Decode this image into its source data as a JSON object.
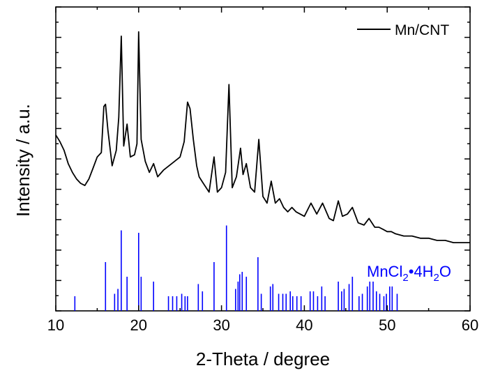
{
  "chart_data": {
    "type": "line",
    "title": "",
    "xlabel": "2-Theta / degree",
    "ylabel": "Intensity / a.u.",
    "xlim": [
      10,
      60
    ],
    "x_ticks": [
      10,
      20,
      30,
      40,
      50,
      60
    ],
    "y_ticks_labeled": false,
    "grid": false,
    "legend": {
      "placement": "top-right",
      "entries": [
        "Mn/CNT"
      ]
    },
    "series": [
      {
        "name": "Mn/CNT",
        "color": "#000000",
        "x": [
          10.0,
          10.5,
          11.0,
          11.5,
          12.0,
          12.5,
          13.0,
          13.5,
          14.0,
          14.5,
          15.0,
          15.5,
          15.8,
          16.0,
          16.3,
          16.8,
          17.3,
          17.6,
          17.9,
          18.2,
          18.6,
          19.0,
          19.5,
          19.8,
          20.0,
          20.3,
          20.8,
          21.3,
          21.8,
          22.3,
          23.0,
          24.0,
          25.0,
          25.5,
          25.9,
          26.2,
          26.6,
          27.0,
          27.3,
          27.8,
          28.5,
          29.1,
          29.5,
          30.0,
          30.5,
          30.9,
          31.3,
          31.8,
          32.3,
          32.6,
          33.0,
          33.5,
          34.0,
          34.5,
          35.0,
          35.5,
          36.0,
          36.5,
          37.0,
          37.5,
          38.0,
          38.5,
          39.0,
          40.0,
          40.8,
          41.5,
          42.2,
          43.0,
          43.5,
          44.1,
          44.6,
          45.2,
          45.8,
          46.5,
          47.2,
          47.8,
          48.5,
          49.0,
          49.5,
          50.0,
          50.5,
          51.0,
          52.0,
          53.0,
          54.0,
          55.0,
          56.0,
          57.0,
          58.0,
          59.0,
          60.0
        ],
        "y": [
          31.0,
          29.5,
          27.5,
          24.5,
          22.5,
          21.0,
          20.0,
          19.5,
          21.0,
          23.5,
          26.0,
          27.0,
          37.5,
          38.0,
          32.0,
          24.0,
          27.5,
          35.0,
          53.5,
          28.5,
          33.5,
          26.0,
          26.5,
          29.0,
          54.5,
          30.0,
          25.0,
          22.5,
          24.5,
          21.5,
          23.0,
          24.5,
          26.0,
          29.5,
          38.5,
          37.0,
          30.0,
          24.0,
          21.5,
          20.0,
          18.0,
          26.0,
          18.0,
          19.0,
          22.5,
          42.5,
          19.0,
          21.5,
          28.0,
          22.0,
          24.5,
          19.0,
          18.0,
          30.0,
          17.0,
          15.5,
          20.5,
          15.5,
          16.5,
          14.5,
          13.5,
          14.5,
          13.5,
          12.5,
          15.5,
          13.0,
          15.5,
          12.0,
          11.5,
          16.0,
          12.5,
          13.0,
          14.5,
          11.0,
          10.5,
          12.0,
          10.0,
          10.0,
          9.5,
          9.0,
          9.0,
          8.5,
          8.0,
          8.0,
          7.5,
          7.5,
          7.0,
          7.0,
          6.5,
          6.5,
          6.5
        ]
      }
    ],
    "reference": {
      "name": "MnCl₂•4H₂O",
      "label_parts": [
        "MnCl",
        "2",
        "•",
        "4H",
        "2",
        "O"
      ],
      "color": "#0000ff",
      "peaks": [
        {
          "x": 12.3,
          "h": 3
        },
        {
          "x": 16.0,
          "h": 10
        },
        {
          "x": 17.1,
          "h": 3.5
        },
        {
          "x": 17.5,
          "h": 4.5
        },
        {
          "x": 17.9,
          "h": 16.5
        },
        {
          "x": 18.6,
          "h": 7
        },
        {
          "x": 20.0,
          "h": 16
        },
        {
          "x": 20.3,
          "h": 7
        },
        {
          "x": 21.8,
          "h": 6
        },
        {
          "x": 23.6,
          "h": 3
        },
        {
          "x": 24.1,
          "h": 3
        },
        {
          "x": 24.6,
          "h": 3
        },
        {
          "x": 25.2,
          "h": 3.5
        },
        {
          "x": 25.6,
          "h": 3
        },
        {
          "x": 25.9,
          "h": 3
        },
        {
          "x": 27.2,
          "h": 5.5
        },
        {
          "x": 27.7,
          "h": 4
        },
        {
          "x": 29.1,
          "h": 10
        },
        {
          "x": 30.6,
          "h": 17.5
        },
        {
          "x": 31.7,
          "h": 4.5
        },
        {
          "x": 32.0,
          "h": 6
        },
        {
          "x": 32.2,
          "h": 7.5
        },
        {
          "x": 32.5,
          "h": 8
        },
        {
          "x": 33.0,
          "h": 7
        },
        {
          "x": 34.4,
          "h": 11
        },
        {
          "x": 34.8,
          "h": 3.5
        },
        {
          "x": 35.9,
          "h": 5
        },
        {
          "x": 36.2,
          "h": 5.5
        },
        {
          "x": 36.9,
          "h": 3.5
        },
        {
          "x": 37.4,
          "h": 3.5
        },
        {
          "x": 37.8,
          "h": 3.5
        },
        {
          "x": 38.3,
          "h": 4
        },
        {
          "x": 38.6,
          "h": 3
        },
        {
          "x": 39.1,
          "h": 3
        },
        {
          "x": 39.6,
          "h": 3
        },
        {
          "x": 40.7,
          "h": 4
        },
        {
          "x": 41.1,
          "h": 4
        },
        {
          "x": 41.6,
          "h": 3
        },
        {
          "x": 42.1,
          "h": 5
        },
        {
          "x": 42.5,
          "h": 3
        },
        {
          "x": 44.1,
          "h": 6
        },
        {
          "x": 44.5,
          "h": 4
        },
        {
          "x": 44.8,
          "h": 4.5
        },
        {
          "x": 45.4,
          "h": 5.5
        },
        {
          "x": 45.8,
          "h": 7
        },
        {
          "x": 46.6,
          "h": 3
        },
        {
          "x": 47.0,
          "h": 3.5
        },
        {
          "x": 47.6,
          "h": 5
        },
        {
          "x": 47.9,
          "h": 6
        },
        {
          "x": 48.3,
          "h": 6
        },
        {
          "x": 48.7,
          "h": 4
        },
        {
          "x": 49.1,
          "h": 3.5
        },
        {
          "x": 49.6,
          "h": 3
        },
        {
          "x": 49.9,
          "h": 3.5
        },
        {
          "x": 50.3,
          "h": 5
        },
        {
          "x": 50.6,
          "h": 5
        },
        {
          "x": 51.2,
          "h": 3.5
        }
      ]
    }
  },
  "labels": {
    "x_ticks": [
      "10",
      "20",
      "30",
      "40",
      "50",
      "60"
    ],
    "xlabel": "2-Theta / degree",
    "ylabel": "Intensity / a.u.",
    "legend": "Mn/CNT"
  }
}
